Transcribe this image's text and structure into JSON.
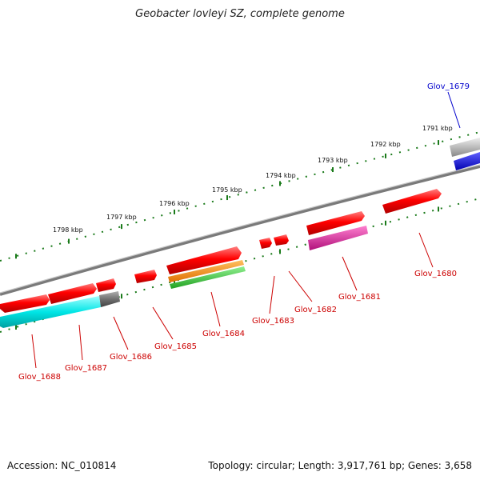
{
  "title": "Geobacter lovleyi SZ, complete genome",
  "footer": {
    "accession": "Accession: NC_010814",
    "summary": "Topology: circular; Length: 3,917,761 bp; Genes: 3,658"
  },
  "scale_labels": [
    "1791 kbp",
    "1792 kbp",
    "1793 kbp",
    "1794 kbp",
    "1795 kbp",
    "1796 kbp",
    "1797 kbp",
    "1798 kbp"
  ],
  "genes": [
    {
      "name": "Glov_1679",
      "color": "#0000cc"
    },
    {
      "name": "Glov_1680",
      "color": "#cc0000"
    },
    {
      "name": "Glov_1681",
      "color": "#cc0000"
    },
    {
      "name": "Glov_1682",
      "color": "#cc0000"
    },
    {
      "name": "Glov_1683",
      "color": "#cc0000"
    },
    {
      "name": "Glov_1684",
      "color": "#cc0000"
    },
    {
      "name": "Glov_1685",
      "color": "#cc0000"
    },
    {
      "name": "Glov_1686",
      "color": "#cc0000"
    },
    {
      "name": "Glov_1687",
      "color": "#cc0000"
    },
    {
      "name": "Glov_1688",
      "color": "#cc0000"
    }
  ],
  "colors": {
    "cds": "#ff0000",
    "backbone": "#808080",
    "scale": "#1a7a1a",
    "cyan_feature": "#00e5e5",
    "gray_feature": "#707070",
    "orange_feature": "#ff8c00",
    "green_feature": "#33cc33",
    "magenta_feature": "#e0189a",
    "blue_feature": "#0000ee"
  }
}
